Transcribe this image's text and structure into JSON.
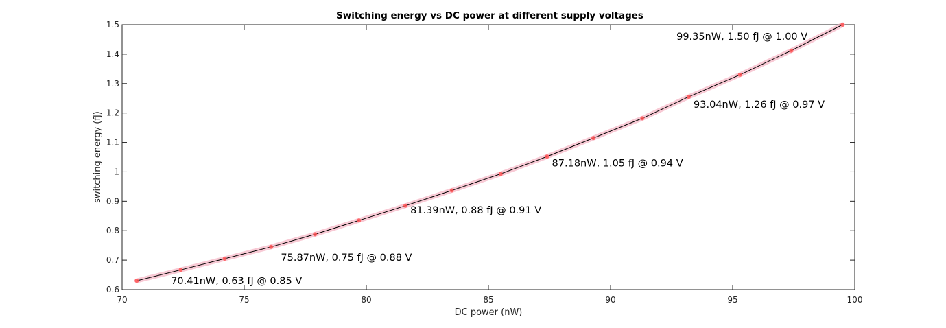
{
  "chart_data": {
    "type": "line",
    "title": "Switching energy vs DC power at different supply voltages",
    "xlabel": "DC power (nW)",
    "ylabel": "switching energy (fJ)",
    "xlim": [
      70,
      100
    ],
    "ylim": [
      0.6,
      1.5
    ],
    "grid": false,
    "legend": "none",
    "x_ticks": [
      "70",
      "75",
      "80",
      "85",
      "90",
      "95",
      "100"
    ],
    "y_ticks": [
      "0.6",
      "0.7",
      "0.8",
      "0.9",
      "1",
      "1.1",
      "1.2",
      "1.3",
      "1.4",
      "1.5"
    ],
    "series": [
      {
        "x": [
          70.6,
          72.4,
          74.2,
          76.1,
          77.9,
          79.7,
          81.6,
          83.5,
          85.5,
          87.4,
          89.3,
          91.3,
          93.2,
          95.3,
          97.4,
          99.5
        ],
        "y": [
          0.63,
          0.667,
          0.705,
          0.745,
          0.788,
          0.835,
          0.885,
          0.937,
          0.993,
          1.052,
          1.115,
          1.182,
          1.255,
          1.33,
          1.412,
          1.5
        ]
      }
    ],
    "annotations": [
      {
        "text": "70.41nW, 0.63 fJ @ 0.85 V",
        "x": 72.0,
        "y": 0.63
      },
      {
        "text": "75.87nW, 0.75 fJ @ 0.88 V",
        "x": 76.5,
        "y": 0.71
      },
      {
        "text": "81.39nW, 0.88 fJ @ 0.91 V",
        "x": 81.8,
        "y": 0.87
      },
      {
        "text": "87.18nW, 1.05 fJ @ 0.94 V",
        "x": 87.6,
        "y": 1.03
      },
      {
        "text": "93.04nW, 1.26 fJ @ 0.97 V",
        "x": 93.4,
        "y": 1.23
      },
      {
        "text": "99.35nW, 1.50 fJ @ 1.00 V",
        "x": 92.7,
        "y": 1.46
      }
    ],
    "colors": {
      "line": "#000000",
      "marker": "#ff5555",
      "band": "#f4a7b9",
      "axes": "#262626"
    }
  }
}
